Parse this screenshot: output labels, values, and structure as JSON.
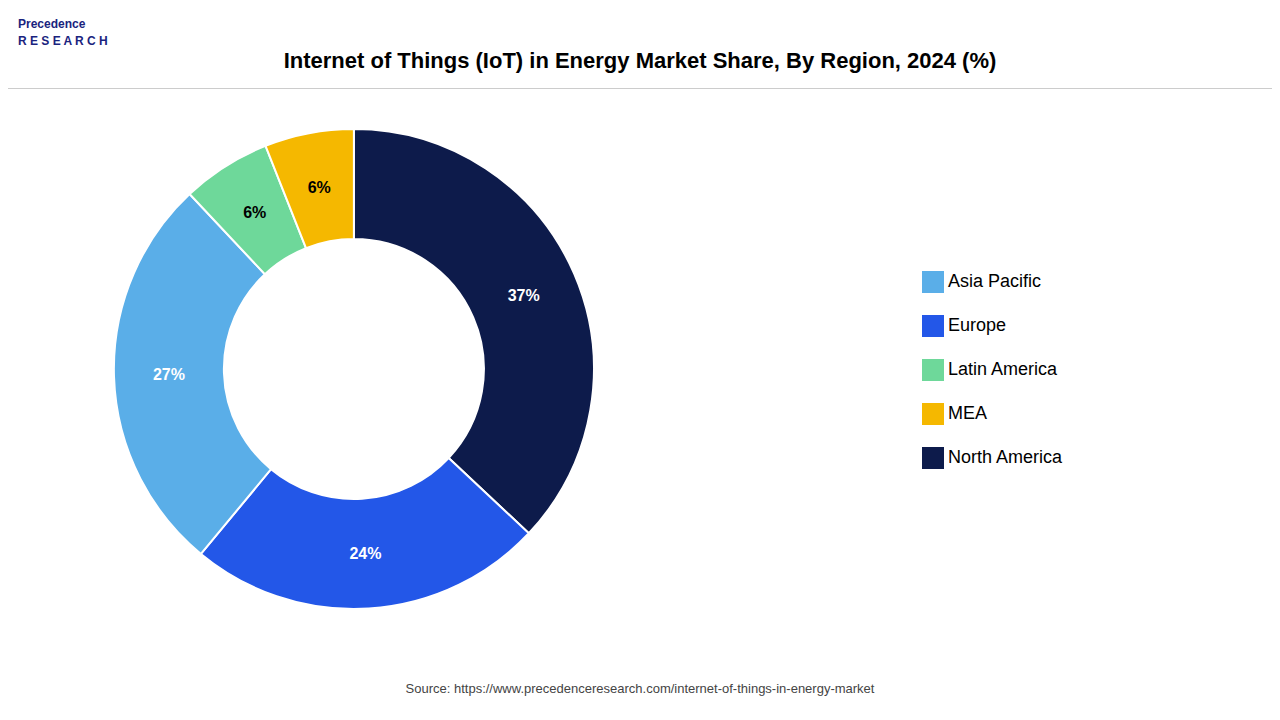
{
  "chart_data": {
    "type": "pie",
    "title": "Internet of Things (IoT) in Energy Market Share, By Region, 2024 (%)",
    "categories": [
      "North America",
      "Europe",
      "Asia Pacific",
      "Latin America",
      "MEA"
    ],
    "values": [
      37,
      24,
      27,
      6,
      6
    ],
    "value_labels": [
      "37%",
      "24%",
      "27%",
      "6%",
      "6%"
    ],
    "colors": [
      "#0d1b4b",
      "#2357e8",
      "#5aaee8",
      "#6ed89a",
      "#f5b800"
    ],
    "data_labels": true,
    "legend": "right",
    "annotations": [
      "Precedence\nR E S E A R C H",
      "Source: https://www.precedenceresearch.com/internet-of-things-in-energy-market"
    ]
  }
}
